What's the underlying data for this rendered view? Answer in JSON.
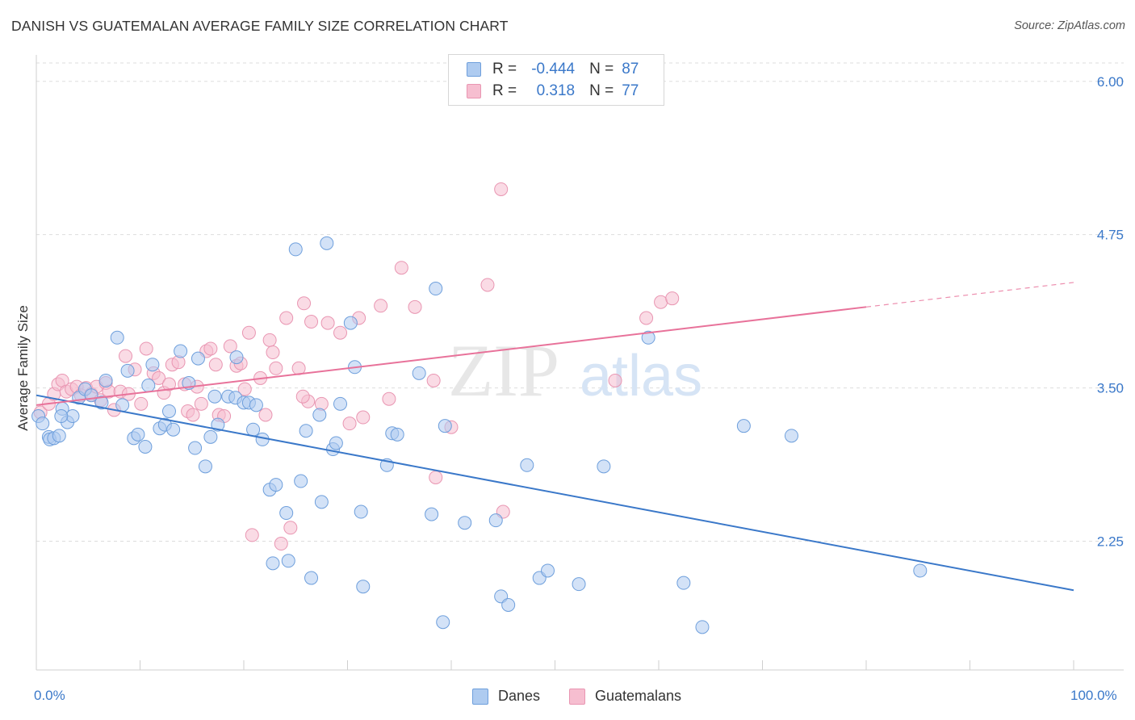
{
  "title": "DANISH VS GUATEMALAN AVERAGE FAMILY SIZE CORRELATION CHART",
  "source": "Source: ZipAtlas.com",
  "watermark": {
    "zip": "ZIP",
    "atlas": "atlas"
  },
  "legend": {
    "rows": [
      {
        "r_label": "R =",
        "r_value": "-0.444",
        "n_label": "N =",
        "n_value": "87",
        "color": "#aecbf0"
      },
      {
        "r_label": "R =",
        "r_value": "0.318",
        "n_label": "N =",
        "n_value": "77",
        "color": "#f6bed0"
      }
    ]
  },
  "bottom_legend": {
    "danes": "Danes",
    "guatemalans": "Guatemalans"
  },
  "x_axis": {
    "min_label": "0.0%",
    "max_label": "100.0%"
  },
  "chart_data": {
    "type": "scatter",
    "title": "DANISH VS GUATEMALAN AVERAGE FAMILY SIZE CORRELATION CHART",
    "xlabel": "",
    "ylabel": "Average Family Size",
    "xlim": [
      0,
      100
    ],
    "ylim": [
      1.2,
      6.15
    ],
    "y_ticks": [
      2.25,
      3.5,
      4.75,
      6.0
    ],
    "y_tick_labels": [
      "2.25",
      "3.50",
      "4.75",
      "6.00"
    ],
    "x_tick_labels": [
      "0.0%",
      "100.0%"
    ],
    "grid": true,
    "series": [
      {
        "name": "Danes",
        "color": "#3a78c9",
        "fill": "#aecbf0",
        "r": -0.444,
        "n": 87,
        "trend": {
          "x0": 0,
          "y0": 3.44,
          "x1": 100,
          "y1": 1.85
        },
        "points": [
          [
            0.2,
            3.27
          ],
          [
            0.6,
            3.21
          ],
          [
            1.2,
            3.1
          ],
          [
            1.3,
            3.08
          ],
          [
            1.7,
            3.09
          ],
          [
            2.2,
            3.11
          ],
          [
            2.5,
            3.33
          ],
          [
            3.0,
            3.22
          ],
          [
            3.5,
            3.27
          ],
          [
            4.1,
            3.42
          ],
          [
            4.7,
            3.49
          ],
          [
            5.3,
            3.44
          ],
          [
            6.3,
            3.38
          ],
          [
            6.7,
            3.56
          ],
          [
            7.8,
            3.91
          ],
          [
            8.3,
            3.36
          ],
          [
            8.8,
            3.64
          ],
          [
            9.4,
            3.09
          ],
          [
            9.8,
            3.12
          ],
          [
            10.5,
            3.02
          ],
          [
            10.8,
            3.52
          ],
          [
            11.2,
            3.69
          ],
          [
            11.9,
            3.17
          ],
          [
            12.4,
            3.2
          ],
          [
            12.8,
            3.31
          ],
          [
            13.2,
            3.16
          ],
          [
            13.9,
            3.8
          ],
          [
            14.7,
            3.54
          ],
          [
            15.3,
            3.01
          ],
          [
            15.6,
            3.74
          ],
          [
            16.3,
            2.86
          ],
          [
            16.8,
            3.1
          ],
          [
            17.5,
            3.2
          ],
          [
            17.2,
            3.43
          ],
          [
            18.5,
            3.43
          ],
          [
            19.2,
            3.42
          ],
          [
            19.3,
            3.75
          ],
          [
            20.0,
            3.38
          ],
          [
            20.5,
            3.38
          ],
          [
            20.9,
            3.16
          ],
          [
            21.2,
            3.36
          ],
          [
            21.8,
            3.08
          ],
          [
            22.5,
            2.67
          ],
          [
            22.8,
            2.07
          ],
          [
            23.1,
            2.71
          ],
          [
            24.1,
            2.48
          ],
          [
            24.3,
            2.09
          ],
          [
            25.0,
            4.63
          ],
          [
            25.5,
            2.74
          ],
          [
            26.0,
            3.15
          ],
          [
            26.5,
            1.95
          ],
          [
            27.3,
            3.28
          ],
          [
            27.5,
            2.57
          ],
          [
            28.0,
            4.68
          ],
          [
            28.6,
            3.0
          ],
          [
            28.9,
            3.05
          ],
          [
            29.3,
            3.37
          ],
          [
            30.3,
            4.03
          ],
          [
            30.7,
            3.67
          ],
          [
            31.5,
            1.88
          ],
          [
            31.3,
            2.49
          ],
          [
            33.8,
            2.87
          ],
          [
            34.3,
            3.13
          ],
          [
            34.8,
            3.12
          ],
          [
            36.9,
            3.62
          ],
          [
            38.1,
            2.47
          ],
          [
            38.5,
            4.31
          ],
          [
            39.2,
            1.59
          ],
          [
            39.4,
            3.19
          ],
          [
            41.3,
            2.4
          ],
          [
            44.3,
            2.42
          ],
          [
            44.8,
            1.8
          ],
          [
            45.5,
            1.73
          ],
          [
            47.3,
            2.87
          ],
          [
            48.5,
            1.95
          ],
          [
            49.3,
            2.01
          ],
          [
            52.3,
            1.9
          ],
          [
            54.7,
            2.86
          ],
          [
            59.0,
            3.91
          ],
          [
            62.4,
            1.91
          ],
          [
            64.2,
            1.55
          ],
          [
            68.2,
            3.19
          ],
          [
            72.8,
            3.11
          ],
          [
            85.2,
            2.01
          ],
          [
            2.4,
            3.27
          ]
        ]
      },
      {
        "name": "Guatemalans",
        "color": "#e8729a",
        "fill": "#f6bed0",
        "r": 0.318,
        "n": 77,
        "trend": {
          "x0": 0,
          "y0": 3.36,
          "x1": 80,
          "y1": 4.16
        },
        "trend_dashed": {
          "x0": 80,
          "y0": 4.16,
          "x1": 100,
          "y1": 4.36
        },
        "points": [
          [
            0.4,
            3.3
          ],
          [
            1.2,
            3.37
          ],
          [
            1.7,
            3.45
          ],
          [
            2.1,
            3.53
          ],
          [
            2.5,
            3.56
          ],
          [
            2.9,
            3.47
          ],
          [
            3.4,
            3.49
          ],
          [
            3.9,
            3.51
          ],
          [
            4.3,
            3.44
          ],
          [
            4.8,
            3.5
          ],
          [
            5.3,
            3.45
          ],
          [
            5.8,
            3.51
          ],
          [
            6.2,
            3.4
          ],
          [
            6.7,
            3.54
          ],
          [
            7.0,
            3.47
          ],
          [
            7.5,
            3.32
          ],
          [
            8.1,
            3.47
          ],
          [
            8.6,
            3.76
          ],
          [
            8.9,
            3.45
          ],
          [
            9.5,
            3.65
          ],
          [
            10.1,
            3.37
          ],
          [
            10.6,
            3.82
          ],
          [
            11.3,
            3.62
          ],
          [
            11.8,
            3.58
          ],
          [
            12.3,
            3.46
          ],
          [
            12.8,
            3.53
          ],
          [
            13.1,
            3.69
          ],
          [
            13.7,
            3.71
          ],
          [
            14.3,
            3.53
          ],
          [
            14.6,
            3.31
          ],
          [
            15.1,
            3.28
          ],
          [
            15.5,
            3.51
          ],
          [
            15.9,
            3.37
          ],
          [
            16.4,
            3.8
          ],
          [
            16.8,
            3.82
          ],
          [
            17.3,
            3.69
          ],
          [
            17.6,
            3.28
          ],
          [
            18.1,
            3.27
          ],
          [
            18.7,
            3.84
          ],
          [
            19.3,
            3.68
          ],
          [
            19.7,
            3.7
          ],
          [
            20.1,
            3.49
          ],
          [
            20.5,
            3.95
          ],
          [
            21.6,
            3.58
          ],
          [
            22.1,
            3.28
          ],
          [
            22.5,
            3.89
          ],
          [
            22.8,
            3.79
          ],
          [
            23.1,
            3.66
          ],
          [
            23.6,
            2.23
          ],
          [
            24.1,
            4.07
          ],
          [
            24.5,
            2.36
          ],
          [
            25.3,
            3.66
          ],
          [
            25.8,
            4.19
          ],
          [
            26.2,
            3.39
          ],
          [
            26.5,
            4.04
          ],
          [
            27.5,
            3.37
          ],
          [
            28.1,
            4.03
          ],
          [
            29.3,
            3.95
          ],
          [
            30.2,
            3.21
          ],
          [
            31.1,
            4.07
          ],
          [
            31.5,
            3.26
          ],
          [
            33.2,
            4.17
          ],
          [
            34.0,
            3.41
          ],
          [
            35.2,
            4.48
          ],
          [
            36.5,
            4.16
          ],
          [
            38.3,
            3.56
          ],
          [
            38.5,
            2.77
          ],
          [
            40.0,
            3.18
          ],
          [
            43.5,
            4.34
          ],
          [
            44.8,
            5.12
          ],
          [
            55.8,
            3.56
          ],
          [
            58.8,
            4.07
          ],
          [
            60.2,
            4.2
          ],
          [
            61.3,
            4.23
          ],
          [
            45.0,
            2.49
          ],
          [
            20.8,
            2.3
          ],
          [
            25.7,
            3.43
          ]
        ]
      }
    ]
  }
}
